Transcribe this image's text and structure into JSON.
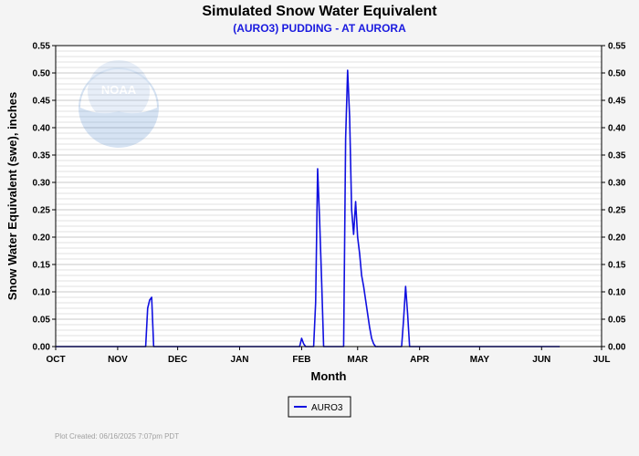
{
  "chart_data": {
    "type": "line",
    "title": "Simulated Snow Water Equivalent",
    "subtitle": "(AURO3) PUDDING - AT AURORA",
    "xlabel": "Month",
    "ylabel": "Snow Water Equivalent (swe),  inches",
    "ylim": [
      0,
      0.55
    ],
    "y_ticks": [
      "0.00",
      "0.05",
      "0.10",
      "0.15",
      "0.20",
      "0.25",
      "0.30",
      "0.35",
      "0.40",
      "0.45",
      "0.50",
      "0.55"
    ],
    "x_ticks": [
      "OCT",
      "NOV",
      "DEC",
      "JAN",
      "FEB",
      "MAR",
      "APR",
      "MAY",
      "JUN",
      "JUL"
    ],
    "grid": true,
    "legend_position": "bottom-center",
    "series": [
      {
        "name": "AURO3",
        "color": "#1010e0",
        "x": [
          "2024-10-01",
          "2024-11-15",
          "2024-11-16",
          "2024-11-17",
          "2024-11-18",
          "2024-11-19",
          "2025-01-31",
          "2025-02-01",
          "2025-02-02",
          "2025-02-03",
          "2025-02-07",
          "2025-02-08",
          "2025-02-09",
          "2025-02-10",
          "2025-02-11",
          "2025-02-12",
          "2025-02-22",
          "2025-02-23",
          "2025-02-24",
          "2025-02-25",
          "2025-02-26",
          "2025-02-27",
          "2025-02-28",
          "2025-03-01",
          "2025-03-02",
          "2025-03-03",
          "2025-03-04",
          "2025-03-05",
          "2025-03-06",
          "2025-03-07",
          "2025-03-08",
          "2025-03-09",
          "2025-03-10",
          "2025-03-11",
          "2025-03-23",
          "2025-03-24",
          "2025-03-25",
          "2025-03-26",
          "2025-03-27",
          "2025-06-10"
        ],
        "y": [
          0.0,
          0.0,
          0.07,
          0.085,
          0.09,
          0.0,
          0.0,
          0.015,
          0.005,
          0.0,
          0.0,
          0.08,
          0.325,
          0.23,
          0.12,
          0.0,
          0.0,
          0.38,
          0.505,
          0.42,
          0.25,
          0.205,
          0.265,
          0.2,
          0.17,
          0.13,
          0.11,
          0.085,
          0.06,
          0.035,
          0.015,
          0.005,
          0.0,
          0.0,
          0.0,
          0.05,
          0.11,
          0.06,
          0.0,
          0.0
        ]
      }
    ]
  },
  "logo": {
    "text": "NOAA"
  },
  "footnote": "Plot Created: 06/16/2025 7:07pm PDT"
}
